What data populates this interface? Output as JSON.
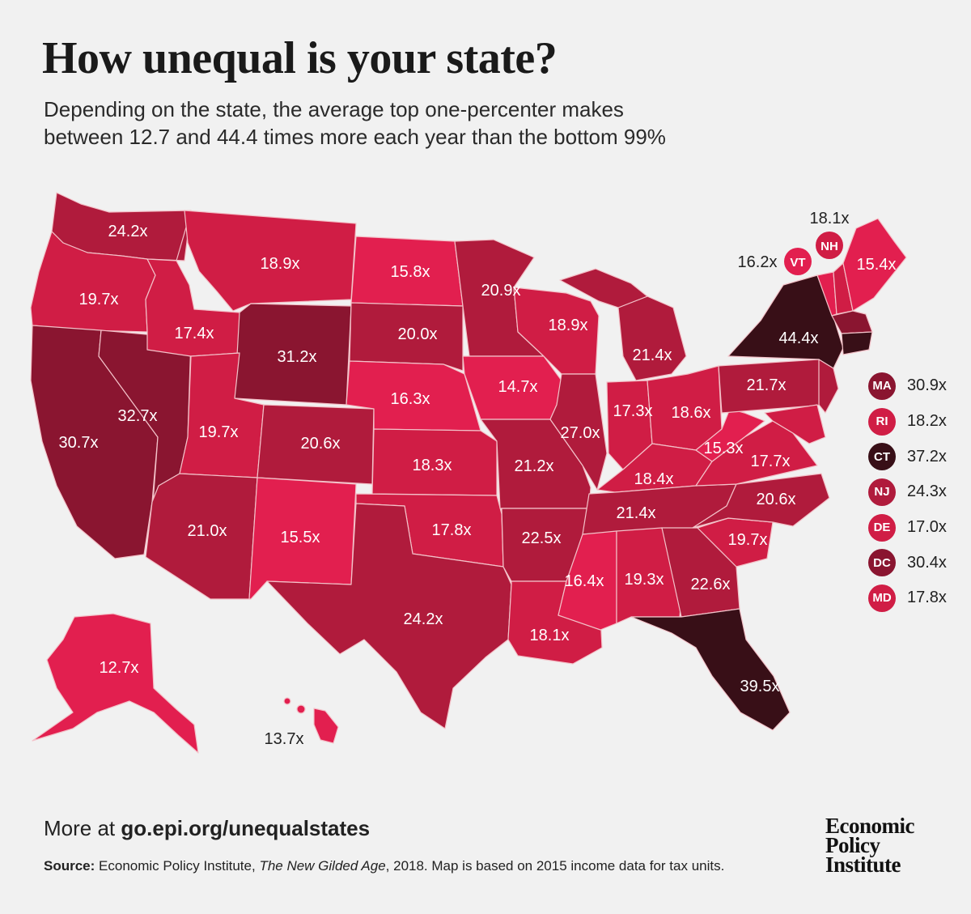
{
  "header": {
    "title": "How unequal is your state?",
    "subtitle_line1": "Depending on the state, the average top one-percenter makes",
    "subtitle_line2": "between 12.7 and 44.4 times more each year than the bottom 99%"
  },
  "colors": {
    "lightest": "#e21f4f",
    "light": "#d01d45",
    "medium": "#b01b3c",
    "dark": "#8a1530",
    "darkest": "#380f17",
    "background": "#f1f1f1"
  },
  "states": [
    {
      "id": "WA",
      "label": "24.2x",
      "value": 24.2
    },
    {
      "id": "OR",
      "label": "19.7x",
      "value": 19.7
    },
    {
      "id": "CA",
      "label": "30.7x",
      "value": 30.7
    },
    {
      "id": "NV",
      "label": "32.7x",
      "value": 32.7
    },
    {
      "id": "ID",
      "label": "17.4x",
      "value": 17.4
    },
    {
      "id": "MT",
      "label": "18.9x",
      "value": 18.9
    },
    {
      "id": "WY",
      "label": "31.2x",
      "value": 31.2
    },
    {
      "id": "UT",
      "label": "19.7x",
      "value": 19.7
    },
    {
      "id": "AZ",
      "label": "21.0x",
      "value": 21.0
    },
    {
      "id": "CO",
      "label": "20.6x",
      "value": 20.6
    },
    {
      "id": "NM",
      "label": "15.5x",
      "value": 15.5
    },
    {
      "id": "ND",
      "label": "15.8x",
      "value": 15.8
    },
    {
      "id": "SD",
      "label": "20.0x",
      "value": 20.0
    },
    {
      "id": "NE",
      "label": "16.3x",
      "value": 16.3
    },
    {
      "id": "KS",
      "label": "18.3x",
      "value": 18.3
    },
    {
      "id": "OK",
      "label": "17.8x",
      "value": 17.8
    },
    {
      "id": "TX",
      "label": "24.2x",
      "value": 24.2
    },
    {
      "id": "MN",
      "label": "20.9x",
      "value": 20.9
    },
    {
      "id": "IA",
      "label": "14.7x",
      "value": 14.7
    },
    {
      "id": "MO",
      "label": "21.2x",
      "value": 21.2
    },
    {
      "id": "AR",
      "label": "22.5x",
      "value": 22.5
    },
    {
      "id": "LA",
      "label": "18.1x",
      "value": 18.1
    },
    {
      "id": "WI",
      "label": "18.9x",
      "value": 18.9
    },
    {
      "id": "IL",
      "label": "27.0x",
      "value": 27.0
    },
    {
      "id": "MI",
      "label": "21.4x",
      "value": 21.4
    },
    {
      "id": "IN",
      "label": "17.3x",
      "value": 17.3
    },
    {
      "id": "OH",
      "label": "18.6x",
      "value": 18.6
    },
    {
      "id": "KY",
      "label": "18.4x",
      "value": 18.4
    },
    {
      "id": "TN",
      "label": "21.4x",
      "value": 21.4
    },
    {
      "id": "MS",
      "label": "16.4x",
      "value": 16.4
    },
    {
      "id": "AL",
      "label": "19.3x",
      "value": 19.3
    },
    {
      "id": "GA",
      "label": "22.6x",
      "value": 22.6
    },
    {
      "id": "FL",
      "label": "39.5x",
      "value": 39.5
    },
    {
      "id": "SC",
      "label": "19.7x",
      "value": 19.7
    },
    {
      "id": "NC",
      "label": "20.6x",
      "value": 20.6
    },
    {
      "id": "VA",
      "label": "17.7x",
      "value": 17.7
    },
    {
      "id": "WV",
      "label": "15.3x",
      "value": 15.3
    },
    {
      "id": "PA",
      "label": "21.7x",
      "value": 21.7
    },
    {
      "id": "NY",
      "label": "44.4x",
      "value": 44.4
    },
    {
      "id": "ME",
      "label": "15.4x",
      "value": 15.4
    },
    {
      "id": "VT",
      "label": "16.2x",
      "value": 16.2
    },
    {
      "id": "NH",
      "label": "18.1x",
      "value": 18.1
    },
    {
      "id": "AK",
      "label": "12.7x",
      "value": 12.7
    },
    {
      "id": "HI",
      "label": "13.7x",
      "value": 13.7
    }
  ],
  "callouts": {
    "vt": {
      "abbr": "VT",
      "label": "16.2x"
    },
    "nh": {
      "abbr": "NH",
      "label": "18.1x"
    }
  },
  "legend": [
    {
      "abbr": "MA",
      "label": "30.9x",
      "value": 30.9
    },
    {
      "abbr": "RI",
      "label": "18.2x",
      "value": 18.2
    },
    {
      "abbr": "CT",
      "label": "37.2x",
      "value": 37.2
    },
    {
      "abbr": "NJ",
      "label": "24.3x",
      "value": 24.3
    },
    {
      "abbr": "DE",
      "label": "17.0x",
      "value": 17.0
    },
    {
      "abbr": "DC",
      "label": "30.4x",
      "value": 30.4
    },
    {
      "abbr": "MD",
      "label": "17.8x",
      "value": 17.8
    }
  ],
  "footer": {
    "more_prefix": "More at ",
    "more_link": "go.epi.org/unequalstates",
    "source_label": "Source:",
    "source_pre": " Economic Policy Institute, ",
    "source_book": "The New Gilded Age",
    "source_post": ", 2018. Map is based on 2015 income data for tax units.",
    "logo_line1": "Economic",
    "logo_line2": "Policy",
    "logo_line3": "Institute"
  }
}
